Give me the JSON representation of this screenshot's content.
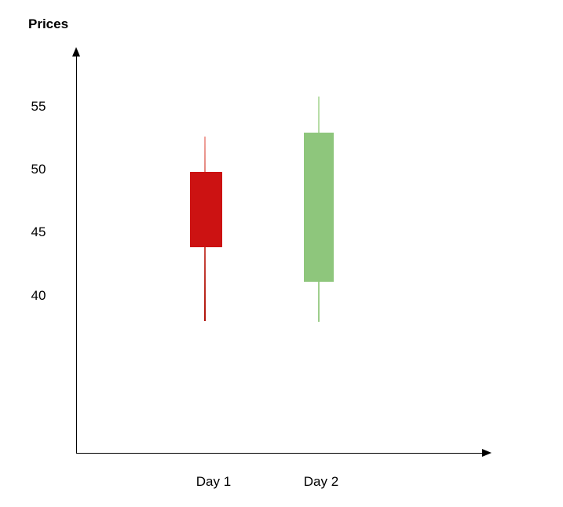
{
  "page": {
    "background": "#ffffff"
  },
  "colors": {
    "axis": "#000000",
    "label_text": "#000000",
    "bearish_body": "#cc1212",
    "bullish_body": "#8ec67c"
  },
  "chart_data": {
    "type": "candlestick",
    "title": "Prices",
    "ylabel": "Prices",
    "xlabel": "",
    "categories": [
      "Day 1",
      "Day 2"
    ],
    "y_ticks": [
      55,
      50,
      45,
      40
    ],
    "ylim": [
      36,
      58
    ],
    "grid": false,
    "legend": "none",
    "series": [
      {
        "name": "Day 1",
        "open": 49.8,
        "high": 52.6,
        "low": 38.0,
        "close": 43.8,
        "direction": "bearish",
        "body_color": "#cc1212",
        "wick_color_top": "#f0a49d",
        "wick_color_bottom": "#b01208"
      },
      {
        "name": "Day 2",
        "open": 41.1,
        "high": 55.8,
        "low": 37.9,
        "close": 52.9,
        "direction": "bullish",
        "body_color": "#8ec67c",
        "wick_color_top": "#bbdfab",
        "wick_color_bottom": "#9ccd8a"
      }
    ]
  }
}
